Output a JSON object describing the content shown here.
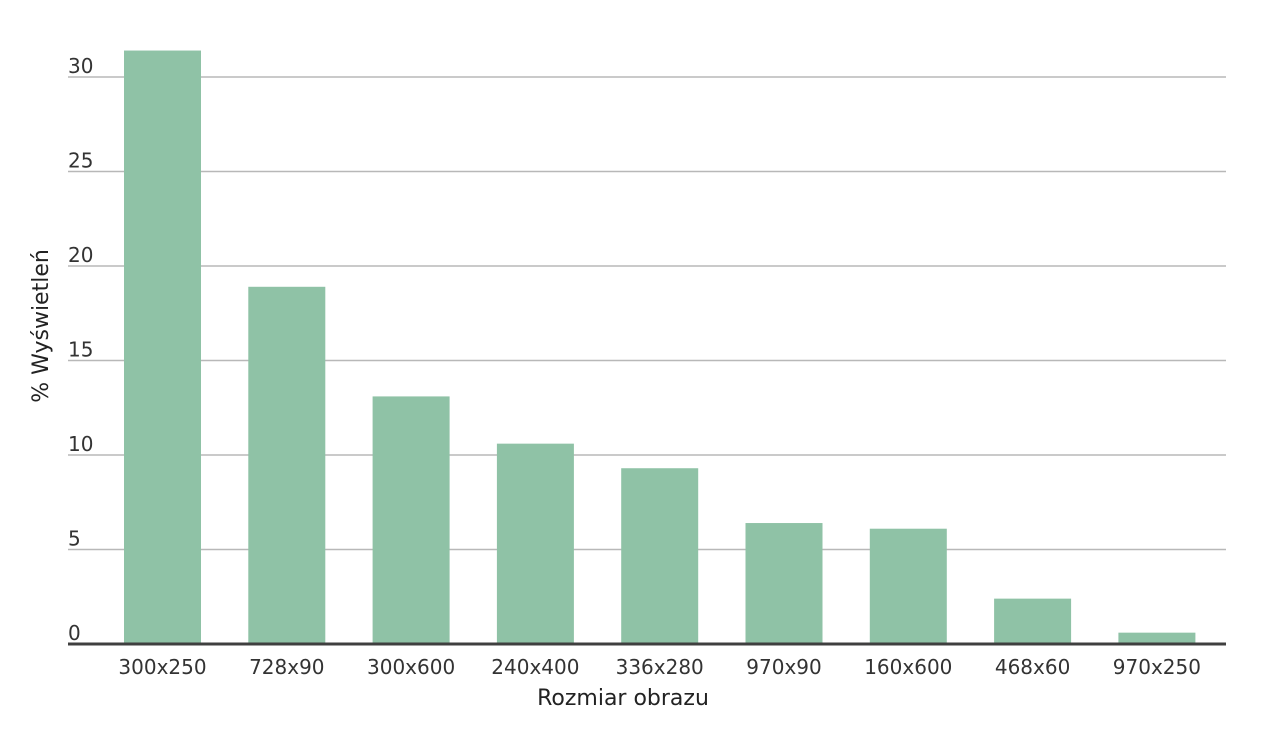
{
  "colors": {
    "bar": "#8fc2a6",
    "grid": "#b8b8b8",
    "baseline": "#3f3f3f",
    "text": "#333333"
  },
  "chart_data": {
    "type": "bar",
    "xlabel": "Rozmiar obrazu",
    "ylabel": "% Wyświetleń",
    "categories": [
      "300x250",
      "728x90",
      "300x600",
      "240x400",
      "336x280",
      "970x90",
      "160x600",
      "468x60",
      "970x250"
    ],
    "values": [
      31.4,
      18.9,
      13.1,
      10.6,
      9.3,
      6.4,
      6.1,
      2.4,
      0.6
    ],
    "yticks": [
      "0",
      "5",
      "10",
      "15",
      "20",
      "25",
      "30"
    ],
    "ylim": [
      0,
      30
    ],
    "grid": true,
    "legend": "none"
  }
}
